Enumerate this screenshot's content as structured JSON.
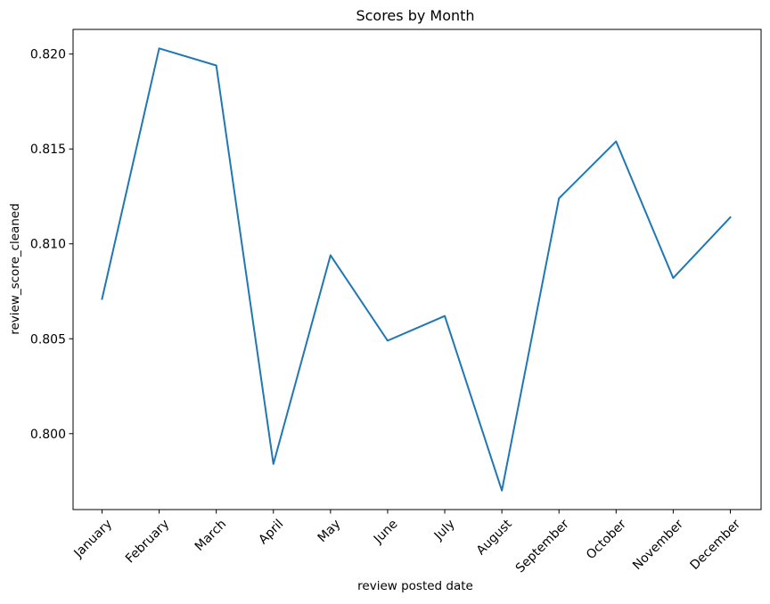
{
  "chart_data": {
    "type": "line",
    "title": "Scores by Month",
    "xlabel": "review posted date",
    "ylabel": "review_score_cleaned",
    "categories": [
      "January",
      "February",
      "March",
      "April",
      "May",
      "June",
      "July",
      "August",
      "September",
      "October",
      "November",
      "December"
    ],
    "series": [
      {
        "values": [
          0.8071,
          0.8203,
          0.8194,
          0.7984,
          0.8094,
          0.8049,
          0.8062,
          0.797,
          0.8124,
          0.8154,
          0.8082,
          0.8114
        ],
        "color": "#1f77b4"
      }
    ],
    "ylim": [
      0.796,
      0.8213
    ],
    "yticks": [
      0.8,
      0.805,
      0.81,
      0.815,
      0.82
    ],
    "ytick_labels": [
      "0.800",
      "0.805",
      "0.810",
      "0.815",
      "0.820"
    ],
    "grid": false,
    "legend": "none"
  }
}
